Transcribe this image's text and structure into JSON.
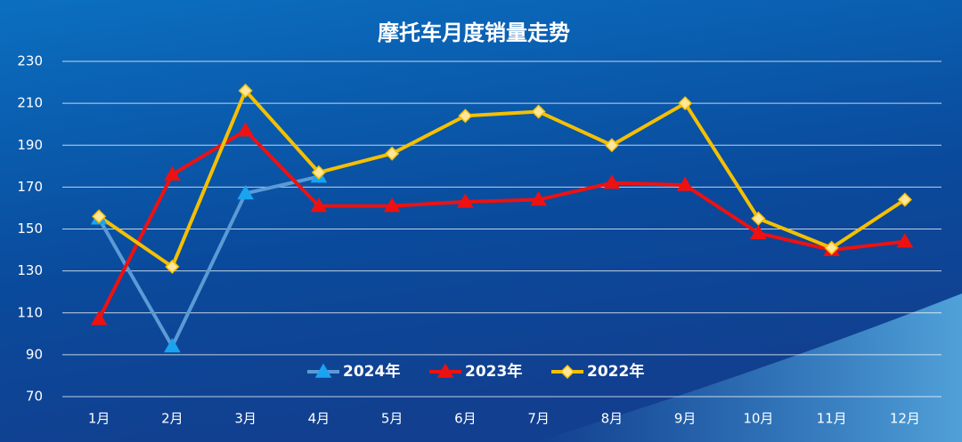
{
  "chart_data": {
    "type": "line",
    "title": "摩托车月度销量走势",
    "categories": [
      "1月",
      "2月",
      "3月",
      "4月",
      "5月",
      "6月",
      "7月",
      "8月",
      "9月",
      "10月",
      "11月",
      "12月"
    ],
    "series": [
      {
        "name": "2024年",
        "color": "#5b9bd5",
        "marker_color": "#1aa3f0",
        "marker": "triangle",
        "values": [
          155,
          94,
          167,
          175,
          null,
          null,
          null,
          null,
          null,
          null,
          null,
          null
        ]
      },
      {
        "name": "2023年",
        "color": "#ee1111",
        "marker_color": "#ee1111",
        "marker": "triangle",
        "values": [
          107,
          176,
          197,
          161,
          161,
          163,
          164,
          172,
          171,
          148,
          140,
          144
        ]
      },
      {
        "name": "2022年",
        "color": "#f5c000",
        "marker_color": "#ffe699",
        "marker": "diamond",
        "values": [
          156,
          132,
          216,
          177,
          186,
          204,
          206,
          190,
          210,
          155,
          141,
          164
        ]
      }
    ],
    "ylim": [
      70,
      230
    ],
    "yticks": [
      70,
      90,
      110,
      130,
      150,
      170,
      190,
      210,
      230
    ],
    "grid": true,
    "legend": "bottom"
  }
}
